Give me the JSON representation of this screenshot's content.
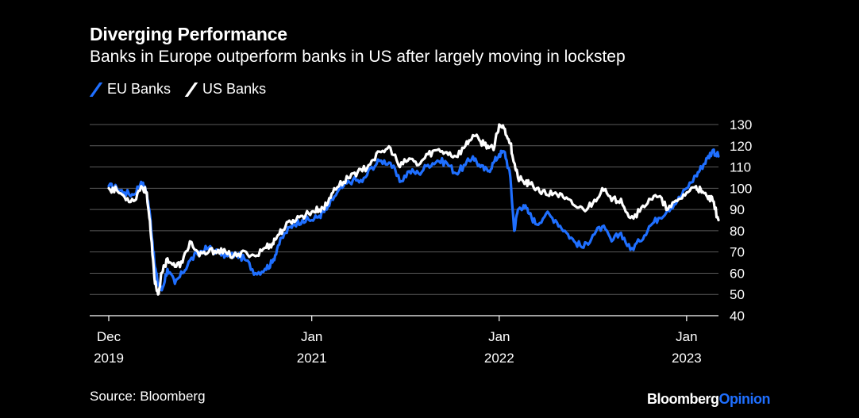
{
  "header": {
    "title": "Diverging Performance",
    "subtitle": "Banks in Europe outperform banks in US after largely moving in lockstep"
  },
  "legend": [
    {
      "label": "EU Banks",
      "color": "#1f6fff"
    },
    {
      "label": "US Banks",
      "color": "#ffffff"
    }
  ],
  "footer": {
    "source": "Source: Bloomberg",
    "brand_main": "Bloomberg",
    "brand_accent": "Opinion"
  },
  "chart_data": {
    "type": "line",
    "title": "Diverging Performance",
    "subtitle": "Banks in Europe outperform banks in US after largely moving in lockstep",
    "xlabel": "",
    "ylabel": "",
    "ylim": [
      40,
      130
    ],
    "yticks": [
      40,
      50,
      60,
      70,
      80,
      90,
      100,
      110,
      120,
      130
    ],
    "xlim": [
      2019.917,
      2023.17
    ],
    "xticks": [
      {
        "x": 2019.917,
        "line1": "Dec",
        "line2": "2019"
      },
      {
        "x": 2021.0,
        "line1": "Jan",
        "line2": "2021"
      },
      {
        "x": 2022.0,
        "line1": "Jan",
        "line2": "2022"
      },
      {
        "x": 2023.0,
        "line1": "Jan",
        "line2": "2023"
      }
    ],
    "grid": true,
    "series": [
      {
        "name": "EU Banks",
        "color": "#1f6fff",
        "x": [
          2019.917,
          2019.96,
          2020.0,
          2020.05,
          2020.09,
          2020.12,
          2020.14,
          2020.16,
          2020.18,
          2020.2,
          2020.23,
          2020.27,
          2020.31,
          2020.35,
          2020.4,
          2020.45,
          2020.5,
          2020.55,
          2020.6,
          2020.65,
          2020.7,
          2020.75,
          2020.79,
          2020.82,
          2020.86,
          2020.9,
          2020.95,
          2021.0,
          2021.04,
          2021.08,
          2021.12,
          2021.17,
          2021.22,
          2021.27,
          2021.32,
          2021.37,
          2021.42,
          2021.47,
          2021.52,
          2021.57,
          2021.62,
          2021.67,
          2021.72,
          2021.77,
          2021.82,
          2021.86,
          2021.9,
          2021.94,
          2021.97,
          2022.0,
          2022.03,
          2022.06,
          2022.08,
          2022.1,
          2022.13,
          2022.16,
          2022.2,
          2022.25,
          2022.3,
          2022.35,
          2022.4,
          2022.45,
          2022.5,
          2022.55,
          2022.6,
          2022.65,
          2022.7,
          2022.75,
          2022.8,
          2022.85,
          2022.9,
          2022.95,
          2023.0,
          2023.05,
          2023.08,
          2023.11,
          2023.14,
          2023.17
        ],
        "values": [
          101,
          100,
          98,
          97,
          103,
          98,
          85,
          65,
          55,
          52,
          62,
          55,
          60,
          66,
          70,
          72,
          70,
          68,
          69,
          66,
          60,
          62,
          65,
          73,
          79,
          83,
          85,
          85,
          87,
          90,
          96,
          101,
          104,
          103,
          110,
          113,
          112,
          103,
          108,
          107,
          111,
          113,
          112,
          107,
          111,
          115,
          110,
          108,
          112,
          116,
          117,
          105,
          80,
          90,
          92,
          88,
          83,
          88,
          85,
          80,
          75,
          72,
          78,
          82,
          75,
          79,
          71,
          75,
          82,
          86,
          90,
          94,
          100,
          106,
          110,
          114,
          118,
          115
        ]
      },
      {
        "name": "US Banks",
        "color": "#ffffff",
        "x": [
          2019.917,
          2019.96,
          2020.0,
          2020.05,
          2020.09,
          2020.12,
          2020.14,
          2020.16,
          2020.18,
          2020.2,
          2020.23,
          2020.27,
          2020.31,
          2020.35,
          2020.4,
          2020.45,
          2020.5,
          2020.55,
          2020.6,
          2020.65,
          2020.7,
          2020.75,
          2020.79,
          2020.82,
          2020.86,
          2020.9,
          2020.95,
          2021.0,
          2021.04,
          2021.08,
          2021.12,
          2021.17,
          2021.22,
          2021.27,
          2021.32,
          2021.37,
          2021.42,
          2021.47,
          2021.52,
          2021.57,
          2021.62,
          2021.67,
          2021.72,
          2021.77,
          2021.82,
          2021.86,
          2021.9,
          2021.94,
          2021.97,
          2022.0,
          2022.03,
          2022.06,
          2022.08,
          2022.1,
          2022.13,
          2022.16,
          2022.2,
          2022.25,
          2022.3,
          2022.35,
          2022.4,
          2022.45,
          2022.5,
          2022.55,
          2022.6,
          2022.65,
          2022.7,
          2022.75,
          2022.8,
          2022.85,
          2022.9,
          2022.95,
          2023.0,
          2023.05,
          2023.08,
          2023.11,
          2023.14,
          2023.17
        ],
        "values": [
          100,
          99,
          96,
          94,
          101,
          98,
          80,
          58,
          50,
          60,
          67,
          63,
          65,
          75,
          68,
          70,
          71,
          69,
          68,
          70,
          68,
          72,
          74,
          78,
          82,
          85,
          87,
          89,
          90,
          92,
          100,
          103,
          107,
          108,
          113,
          117,
          119,
          110,
          114,
          111,
          116,
          118,
          117,
          115,
          120,
          125,
          122,
          120,
          118,
          130,
          128,
          121,
          112,
          105,
          103,
          102,
          100,
          97,
          98,
          95,
          92,
          90,
          93,
          100,
          94,
          95,
          86,
          89,
          95,
          96,
          90,
          94,
          98,
          101,
          98,
          96,
          94,
          85
        ]
      }
    ]
  }
}
